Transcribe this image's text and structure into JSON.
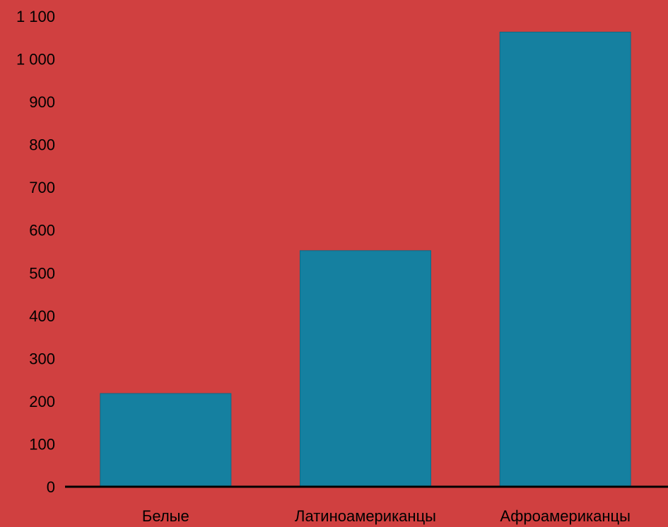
{
  "chart_data": {
    "type": "bar",
    "categories": [
      "Белые",
      "Латиноамериканцы",
      "Афроамериканцы"
    ],
    "values": [
      218,
      552,
      1063
    ],
    "ylim": [
      0,
      1100
    ],
    "yticks": [
      0,
      100,
      200,
      300,
      400,
      500,
      600,
      700,
      800,
      900,
      1000,
      1100
    ],
    "ytick_labels": [
      "0",
      "100",
      "200",
      "300",
      "400",
      "500",
      "600",
      "700",
      "800",
      "900",
      "1 000",
      "1 100"
    ],
    "grid": false,
    "legend": "none"
  },
  "colors": {
    "background": "#d04040",
    "bar": "#1580a0",
    "axis": "#000000",
    "text": "#000000"
  }
}
